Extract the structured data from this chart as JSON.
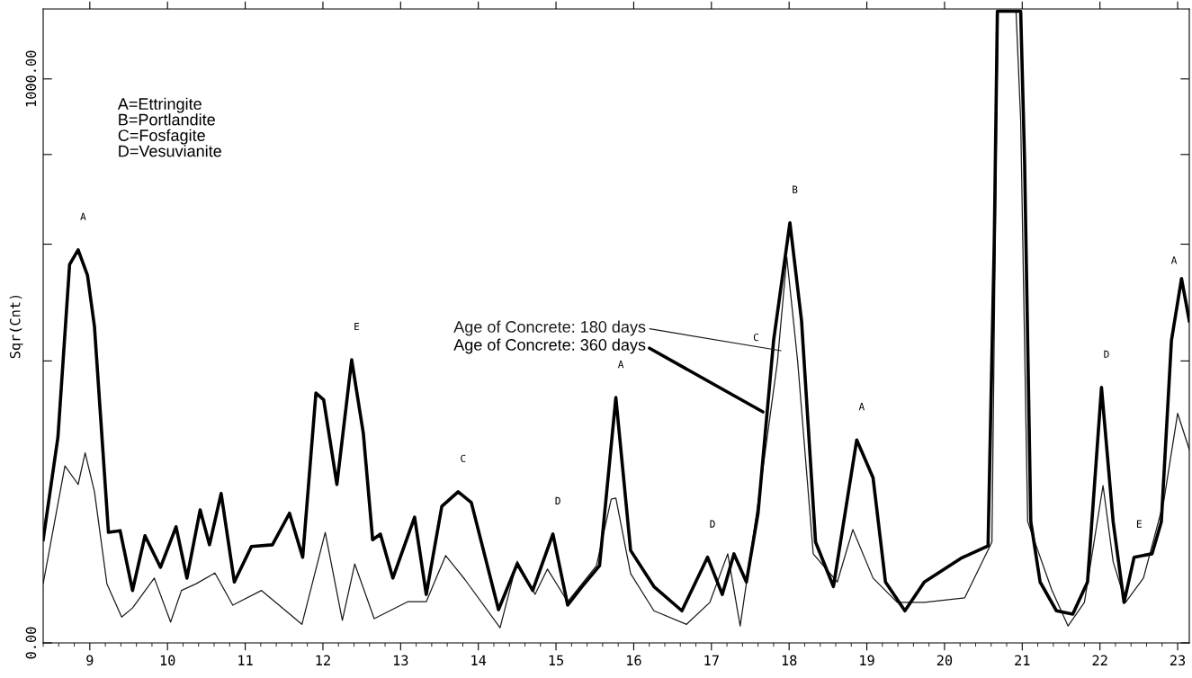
{
  "chart_data": {
    "type": "line",
    "ylabel": "Sqr(Cnt)",
    "xlim": [
      8.4,
      23.15
    ],
    "xticks": [
      9,
      10,
      11,
      12,
      13,
      14,
      15,
      16,
      17,
      18,
      19,
      20,
      21,
      22,
      23
    ],
    "ylim": [
      0,
      1124
    ],
    "yticks": [
      {
        "value": 0,
        "label": "0.00"
      },
      {
        "value": 500,
        "label": null
      },
      {
        "value": 707,
        "label": null
      },
      {
        "value": 866,
        "label": null
      },
      {
        "value": 1000,
        "label": "1000.00"
      }
    ],
    "grid": false,
    "legend": false,
    "marker": "none",
    "series": [
      {
        "name": "Age of Concrete: 180 days",
        "color": "#1a1a1a",
        "line_style": "solid",
        "x": [
          8.4,
          8.68,
          8.85,
          8.94,
          9.06,
          9.22,
          9.41,
          9.55,
          9.83,
          10.04,
          10.18,
          10.37,
          10.61,
          10.84,
          11.21,
          11.73,
          12.03,
          12.25,
          12.41,
          12.66,
          13.09,
          13.33,
          13.58,
          13.83,
          14.28,
          14.5,
          14.73,
          14.89,
          15.15,
          15.52,
          15.71,
          15.77,
          15.96,
          16.26,
          16.68,
          16.98,
          17.21,
          17.37,
          17.64,
          17.85,
          17.97,
          18.11,
          18.31,
          18.62,
          18.82,
          19.08,
          19.39,
          19.74,
          20.26,
          20.61,
          20.67,
          20.69,
          20.92,
          20.98,
          21.07,
          21.38,
          21.59,
          21.8,
          22.04,
          22.17,
          22.33,
          22.56,
          22.82,
          23.0,
          23.15
        ],
        "values": [
          105,
          314,
          281,
          337,
          268,
          105,
          46,
          62,
          115,
          37,
          93,
          105,
          124,
          67,
          93,
          33,
          196,
          40,
          140,
          43,
          73,
          73,
          155,
          112,
          27,
          145,
          86,
          131,
          73,
          137,
          255,
          257,
          123,
          57,
          33,
          72,
          158,
          30,
          286,
          499,
          684,
          499,
          158,
          108,
          201,
          115,
          72,
          72,
          80,
          179,
          927,
          1120,
          1120,
          927,
          215,
          94,
          30,
          72,
          279,
          144,
          72,
          115,
          250,
          407,
          343
        ]
      },
      {
        "name": "Age of Concrete: 360 days",
        "color": "#000000",
        "line_style": "solid",
        "x": [
          8.4,
          8.59,
          8.74,
          8.85,
          8.97,
          9.06,
          9.24,
          9.39,
          9.55,
          9.71,
          9.91,
          10.11,
          10.25,
          10.42,
          10.54,
          10.69,
          10.86,
          11.08,
          11.35,
          11.57,
          11.74,
          11.91,
          12.01,
          12.18,
          12.37,
          12.52,
          12.64,
          12.74,
          12.9,
          13.18,
          13.33,
          13.53,
          13.74,
          13.91,
          14.26,
          14.5,
          14.7,
          14.96,
          15.15,
          15.33,
          15.56,
          15.77,
          15.96,
          16.26,
          16.62,
          16.95,
          17.14,
          17.29,
          17.45,
          17.6,
          17.8,
          18.01,
          18.16,
          18.34,
          18.57,
          18.87,
          19.08,
          19.24,
          19.49,
          19.74,
          20.21,
          20.56,
          20.64,
          20.68,
          20.98,
          21.03,
          21.11,
          21.23,
          21.44,
          21.65,
          21.84,
          22.02,
          22.17,
          22.31,
          22.44,
          22.67,
          22.79,
          22.92,
          23.05,
          23.15
        ],
        "values": [
          183,
          365,
          671,
          697,
          652,
          561,
          196,
          199,
          93,
          190,
          134,
          206,
          115,
          236,
          174,
          265,
          108,
          171,
          174,
          230,
          152,
          443,
          431,
          281,
          502,
          372,
          183,
          193,
          115,
          223,
          86,
          242,
          268,
          249,
          59,
          140,
          93,
          193,
          67,
          99,
          137,
          435,
          164,
          100,
          57,
          152,
          86,
          158,
          108,
          230,
          536,
          745,
          571,
          179,
          100,
          360,
          293,
          108,
          57,
          108,
          150,
          172,
          713,
          1120,
          1120,
          855,
          215,
          108,
          57,
          51,
          108,
          453,
          215,
          72,
          152,
          158,
          215,
          536,
          646,
          571
        ]
      }
    ],
    "annotations": [
      "A=Ettringite\nB=Portlandite\nC=Fosfagite\nD=Vesuvianite",
      {
        "text": "A",
        "x": 8.85,
        "y": 697
      },
      {
        "text": "E",
        "x": 12.37,
        "y": 502
      },
      {
        "text": "C",
        "x": 13.74,
        "y": 268
      },
      {
        "text": "D",
        "x": 14.96,
        "y": 193
      },
      {
        "text": "A",
        "x": 15.77,
        "y": 435
      },
      {
        "text": "D",
        "x": 16.95,
        "y": 152
      },
      {
        "text": "C",
        "x": 17.8,
        "y": 536
      },
      {
        "text": "B",
        "x": 18.01,
        "y": 745
      },
      {
        "text": "A",
        "x": 18.87,
        "y": 360
      },
      {
        "text": "D",
        "x": 22.02,
        "y": 453
      },
      {
        "text": "E",
        "x": 22.44,
        "y": 152
      },
      {
        "text": "A",
        "x": 23.05,
        "y": 646
      }
    ]
  }
}
